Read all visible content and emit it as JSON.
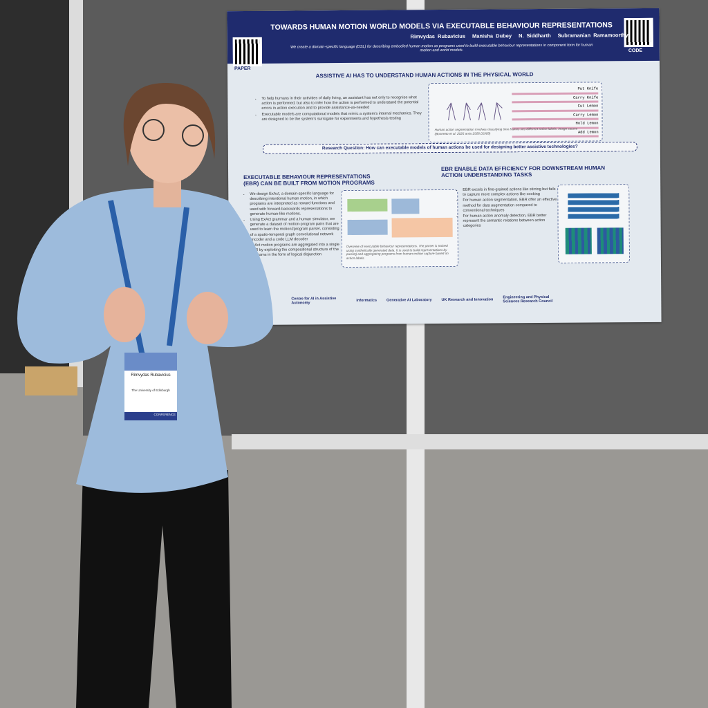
{
  "poster": {
    "title": "TOWARDS HUMAN MOTION WORLD MODELS VIA EXECUTABLE BEHAVIOUR REPRESENTATIONS",
    "authors": [
      "Rimvydas Rubavicius",
      "Manisha Dubey",
      "N. Siddharth",
      "Subramanian Ramamoorthy"
    ],
    "subtitle": "We create a domain-specific language (DSL) for describing embodied human motion as programs used to build executable behaviour representations in component form for human motion and world models.",
    "qr_labels": [
      "PAPER",
      "CODE"
    ],
    "sections": [
      {
        "heading": "ASSISTIVE AI HAS TO UNDERSTAND HUMAN ACTIONS IN THE PHYSICAL WORLD",
        "bullets": [
          "To help humans in their activities of daily living, an assistant has not only to recognise what action is performed, but also to infer how the action is performed to understand the potential errors in action execution and to provide assistance-as-needed",
          "Executable models are computational models that mimic a system's internal mechanics. They are designed to be the system's surrogate for experiments and hypothesis testing"
        ],
        "caption": "Human action segmentation involves classifying time frames into different action labels. Image source (Bonnetto et al. 2025 arxiv:2506.01909)"
      },
      {
        "heading": "EXECUTABLE BEHAVIOUR REPRESENTATIONS (EBR) CAN BE BUILT FROM MOTION PROGRAMS",
        "bullets": [
          "We design ExAct, a domain-specific language for describing intentional human motion, in which programs are interpreted as reward functions and used with forward-backwards representations to generate human-like motions.",
          "Using ExAct grammar and a human simulator, we generate a dataset of motion-program pairs that are used to learn the motion2program parser, consisting of a spatio-temporal graph convolutional network encoder and a code LLM decoder",
          "ExAct motion programs are aggregated into a single EBR by exploiting the compositional structure of the programs in the form of logical disjunction"
        ],
        "caption": "Overview of executable behaviour representations. The parser is trained using synthetically generated data. It is used to build representations by parsing and aggregating programs from human motion capture based on action labels."
      },
      {
        "heading": "EBR ENABLE DATA EFFICIENCY FOR DOWNSTREAM HUMAN ACTION UNDERSTANDING TASKS",
        "bullets": [
          "EBR excels in fine-grained actions like stirring but fails to capture more complex actions like cooking",
          "For human action segmentation, EBR offer an effective method for data augmentation compared to conventional techniques",
          "For human action anomaly detection, EBR better represent the semantic relations between action categories"
        ]
      }
    ],
    "action_labels": [
      "Put Knife",
      "Carry Knife",
      "Cut Lemon",
      "Carry Lemon",
      "Hold Lemon",
      "Add Lemon"
    ],
    "research_question": "Research Question: How can executable models of human actions be used for designing better assistive technologies?",
    "logos": [
      "Centre for AI in Assistive Autonomy",
      "informatics",
      "Generative AI Laboratory",
      "UK Research and Innovation",
      "Engineering and Physical Sciences Research Council"
    ]
  },
  "badge": {
    "name": "Rimvydas Rubavicius",
    "affiliation": "The University of Edinburgh",
    "event": "CONFERENCE"
  }
}
